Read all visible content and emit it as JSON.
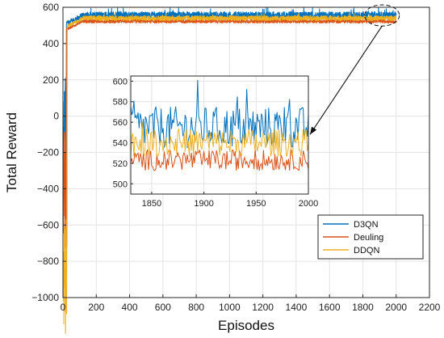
{
  "chart_data": {
    "type": "line",
    "xlabel": "Episodes",
    "ylabel": "Total Reward",
    "xlim": [
      0,
      2200
    ],
    "ylim": [
      -1000,
      600
    ],
    "xticks": [
      0,
      200,
      400,
      600,
      800,
      1000,
      1200,
      1400,
      1600,
      1800,
      2000,
      2200
    ],
    "yticks": [
      -1000,
      -800,
      -600,
      -400,
      -200,
      0,
      200,
      400,
      600
    ],
    "grid": true,
    "legend_position": "lower-right",
    "series": [
      {
        "name": "D3QN",
        "color": "#0072BD",
        "start_value": -60,
        "plateau_mean": 555,
        "plateau_noise": 12,
        "rise_episode": 20
      },
      {
        "name": "Deuling",
        "color": "#D95319",
        "start_value": -400,
        "plateau_mean": 523,
        "plateau_noise": 6,
        "rise_episode": 20
      },
      {
        "name": "DDQN",
        "color": "#EDB120",
        "start_value": -910,
        "plateau_mean": 540,
        "plateau_noise": 8,
        "rise_episode": 25
      }
    ],
    "inset": {
      "xlim": [
        1830,
        2000
      ],
      "ylim": [
        490,
        605
      ],
      "xticks": [
        1850,
        1900,
        1950,
        2000
      ],
      "yticks": [
        500,
        520,
        540,
        560,
        580,
        600
      ],
      "highlight_region": {
        "x": [
          1830,
          2000
        ],
        "y": [
          510,
          600
        ]
      }
    }
  }
}
